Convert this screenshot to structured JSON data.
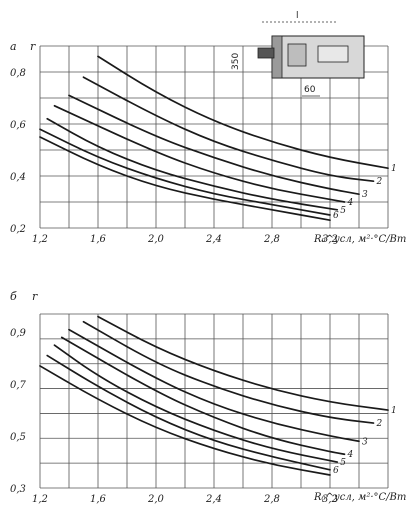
{
  "chart_data": [
    {
      "type": "line",
      "panel_letter": "а",
      "y_var": "r",
      "xlabel": "R₀^усл, м²·°С/Вт",
      "x_ticks": [
        "1,2",
        "1,6",
        "2,0",
        "2,4",
        "2,8",
        "3,2"
      ],
      "y_ticks": [
        "0,8",
        "0,6",
        "0,4",
        "0,2"
      ],
      "xlim": [
        1.2,
        3.6
      ],
      "ylim": [
        0.2,
        0.9
      ],
      "grid": true,
      "series": [
        {
          "name": "1",
          "x": [
            1.6,
            2.0,
            2.4,
            2.8,
            3.2,
            3.6
          ],
          "y": [
            0.86,
            0.72,
            0.61,
            0.53,
            0.47,
            0.43
          ]
        },
        {
          "name": "2",
          "x": [
            1.5,
            2.0,
            2.4,
            2.8,
            3.2,
            3.5
          ],
          "y": [
            0.78,
            0.63,
            0.53,
            0.46,
            0.4,
            0.38
          ]
        },
        {
          "name": "3",
          "x": [
            1.4,
            2.0,
            2.4,
            2.8,
            3.2,
            3.4
          ],
          "y": [
            0.71,
            0.55,
            0.47,
            0.4,
            0.35,
            0.33
          ]
        },
        {
          "name": "4",
          "x": [
            1.3,
            2.0,
            2.4,
            2.8,
            3.2,
            3.3
          ],
          "y": [
            0.67,
            0.49,
            0.41,
            0.35,
            0.31,
            0.3
          ]
        },
        {
          "name": "5",
          "x": [
            1.25,
            1.6,
            2.0,
            2.4,
            2.8,
            3.25
          ],
          "y": [
            0.62,
            0.51,
            0.42,
            0.36,
            0.31,
            0.27
          ]
        },
        {
          "name": "6",
          "x": [
            1.2,
            1.6,
            2.0,
            2.4,
            2.8,
            3.2
          ],
          "y": [
            0.58,
            0.47,
            0.39,
            0.33,
            0.29,
            0.25
          ]
        },
        {
          "name": "",
          "x": [
            1.2,
            1.6,
            2.0,
            2.4,
            2.8,
            3.2
          ],
          "y": [
            0.55,
            0.44,
            0.36,
            0.31,
            0.27,
            0.23
          ]
        }
      ]
    },
    {
      "type": "line",
      "panel_letter": "б",
      "y_var": "r",
      "xlabel": "R₀^усл, м²·°С/Вт",
      "x_ticks": [
        "1,2",
        "1,6",
        "2,0",
        "2,4",
        "2,8",
        "3,2"
      ],
      "y_ticks": [
        "0,9",
        "0,7",
        "0,5",
        "0,3"
      ],
      "xlim": [
        1.2,
        3.6
      ],
      "ylim": [
        0.3,
        0.97
      ],
      "grid": true,
      "series": [
        {
          "name": "1",
          "x": [
            1.6,
            2.0,
            2.4,
            2.8,
            3.2,
            3.6
          ],
          "y": [
            0.96,
            0.84,
            0.75,
            0.68,
            0.63,
            0.6
          ]
        },
        {
          "name": "2",
          "x": [
            1.5,
            2.0,
            2.4,
            2.8,
            3.2,
            3.5
          ],
          "y": [
            0.94,
            0.78,
            0.69,
            0.62,
            0.57,
            0.55
          ]
        },
        {
          "name": "3",
          "x": [
            1.4,
            2.0,
            2.4,
            2.8,
            3.2,
            3.4
          ],
          "y": [
            0.91,
            0.72,
            0.62,
            0.55,
            0.5,
            0.48
          ]
        },
        {
          "name": "4",
          "x": [
            1.35,
            2.0,
            2.4,
            2.8,
            3.2,
            3.3
          ],
          "y": [
            0.88,
            0.67,
            0.57,
            0.49,
            0.44,
            0.43
          ]
        },
        {
          "name": "5",
          "x": [
            1.3,
            1.6,
            2.0,
            2.4,
            2.8,
            3.25
          ],
          "y": [
            0.85,
            0.73,
            0.61,
            0.52,
            0.45,
            0.4
          ]
        },
        {
          "name": "6",
          "x": [
            1.25,
            1.6,
            2.0,
            2.4,
            2.8,
            3.2
          ],
          "y": [
            0.81,
            0.69,
            0.57,
            0.48,
            0.42,
            0.37
          ]
        },
        {
          "name": "",
          "x": [
            1.2,
            1.6,
            2.0,
            2.4,
            2.8,
            3.2
          ],
          "y": [
            0.77,
            0.64,
            0.53,
            0.45,
            0.39,
            0.35
          ]
        }
      ]
    }
  ],
  "inset": {
    "dim_top": "l",
    "dim_left": "350",
    "dim_bottom": "60"
  }
}
